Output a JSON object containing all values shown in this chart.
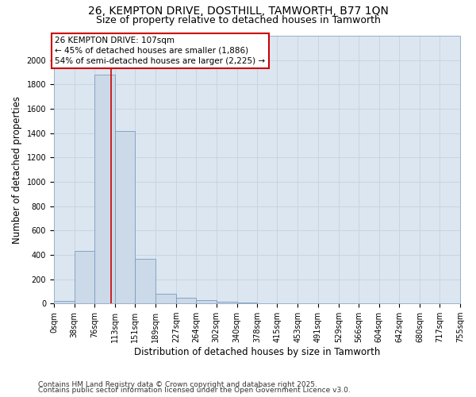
{
  "title_line1": "26, KEMPTON DRIVE, DOSTHILL, TAMWORTH, B77 1QN",
  "title_line2": "Size of property relative to detached houses in Tamworth",
  "xlabel": "Distribution of detached houses by size in Tamworth",
  "ylabel": "Number of detached properties",
  "bar_edges": [
    0,
    38,
    76,
    113,
    151,
    189,
    227,
    264,
    302,
    340,
    378,
    415,
    453,
    491,
    529,
    566,
    604,
    642,
    680,
    717,
    755
  ],
  "bar_heights": [
    20,
    430,
    1880,
    1420,
    370,
    80,
    50,
    30,
    15,
    5,
    0,
    0,
    0,
    0,
    0,
    0,
    0,
    0,
    0,
    0
  ],
  "bar_color": "#ccd9e8",
  "bar_edge_color": "#7a9cbf",
  "property_size": 107,
  "red_line_color": "#cc0000",
  "annotation_text": "26 KEMPTON DRIVE: 107sqm\n← 45% of detached houses are smaller (1,886)\n54% of semi-detached houses are larger (2,225) →",
  "annotation_box_color": "#ffffff",
  "annotation_box_edge": "#cc0000",
  "ylim": [
    0,
    2200
  ],
  "yticks": [
    0,
    200,
    400,
    600,
    800,
    1000,
    1200,
    1400,
    1600,
    1800,
    2000
  ],
  "tick_labels": [
    "0sqm",
    "38sqm",
    "76sqm",
    "113sqm",
    "151sqm",
    "189sqm",
    "227sqm",
    "264sqm",
    "302sqm",
    "340sqm",
    "378sqm",
    "415sqm",
    "453sqm",
    "491sqm",
    "529sqm",
    "566sqm",
    "604sqm",
    "642sqm",
    "680sqm",
    "717sqm",
    "755sqm"
  ],
  "grid_color": "#c8d4e0",
  "bg_color": "#dce6f0",
  "footer_line1": "Contains HM Land Registry data © Crown copyright and database right 2025.",
  "footer_line2": "Contains public sector information licensed under the Open Government Licence v3.0.",
  "title_fontsize": 10,
  "subtitle_fontsize": 9,
  "axis_label_fontsize": 8.5,
  "tick_fontsize": 7,
  "annotation_fontsize": 7.5,
  "footer_fontsize": 6.5
}
